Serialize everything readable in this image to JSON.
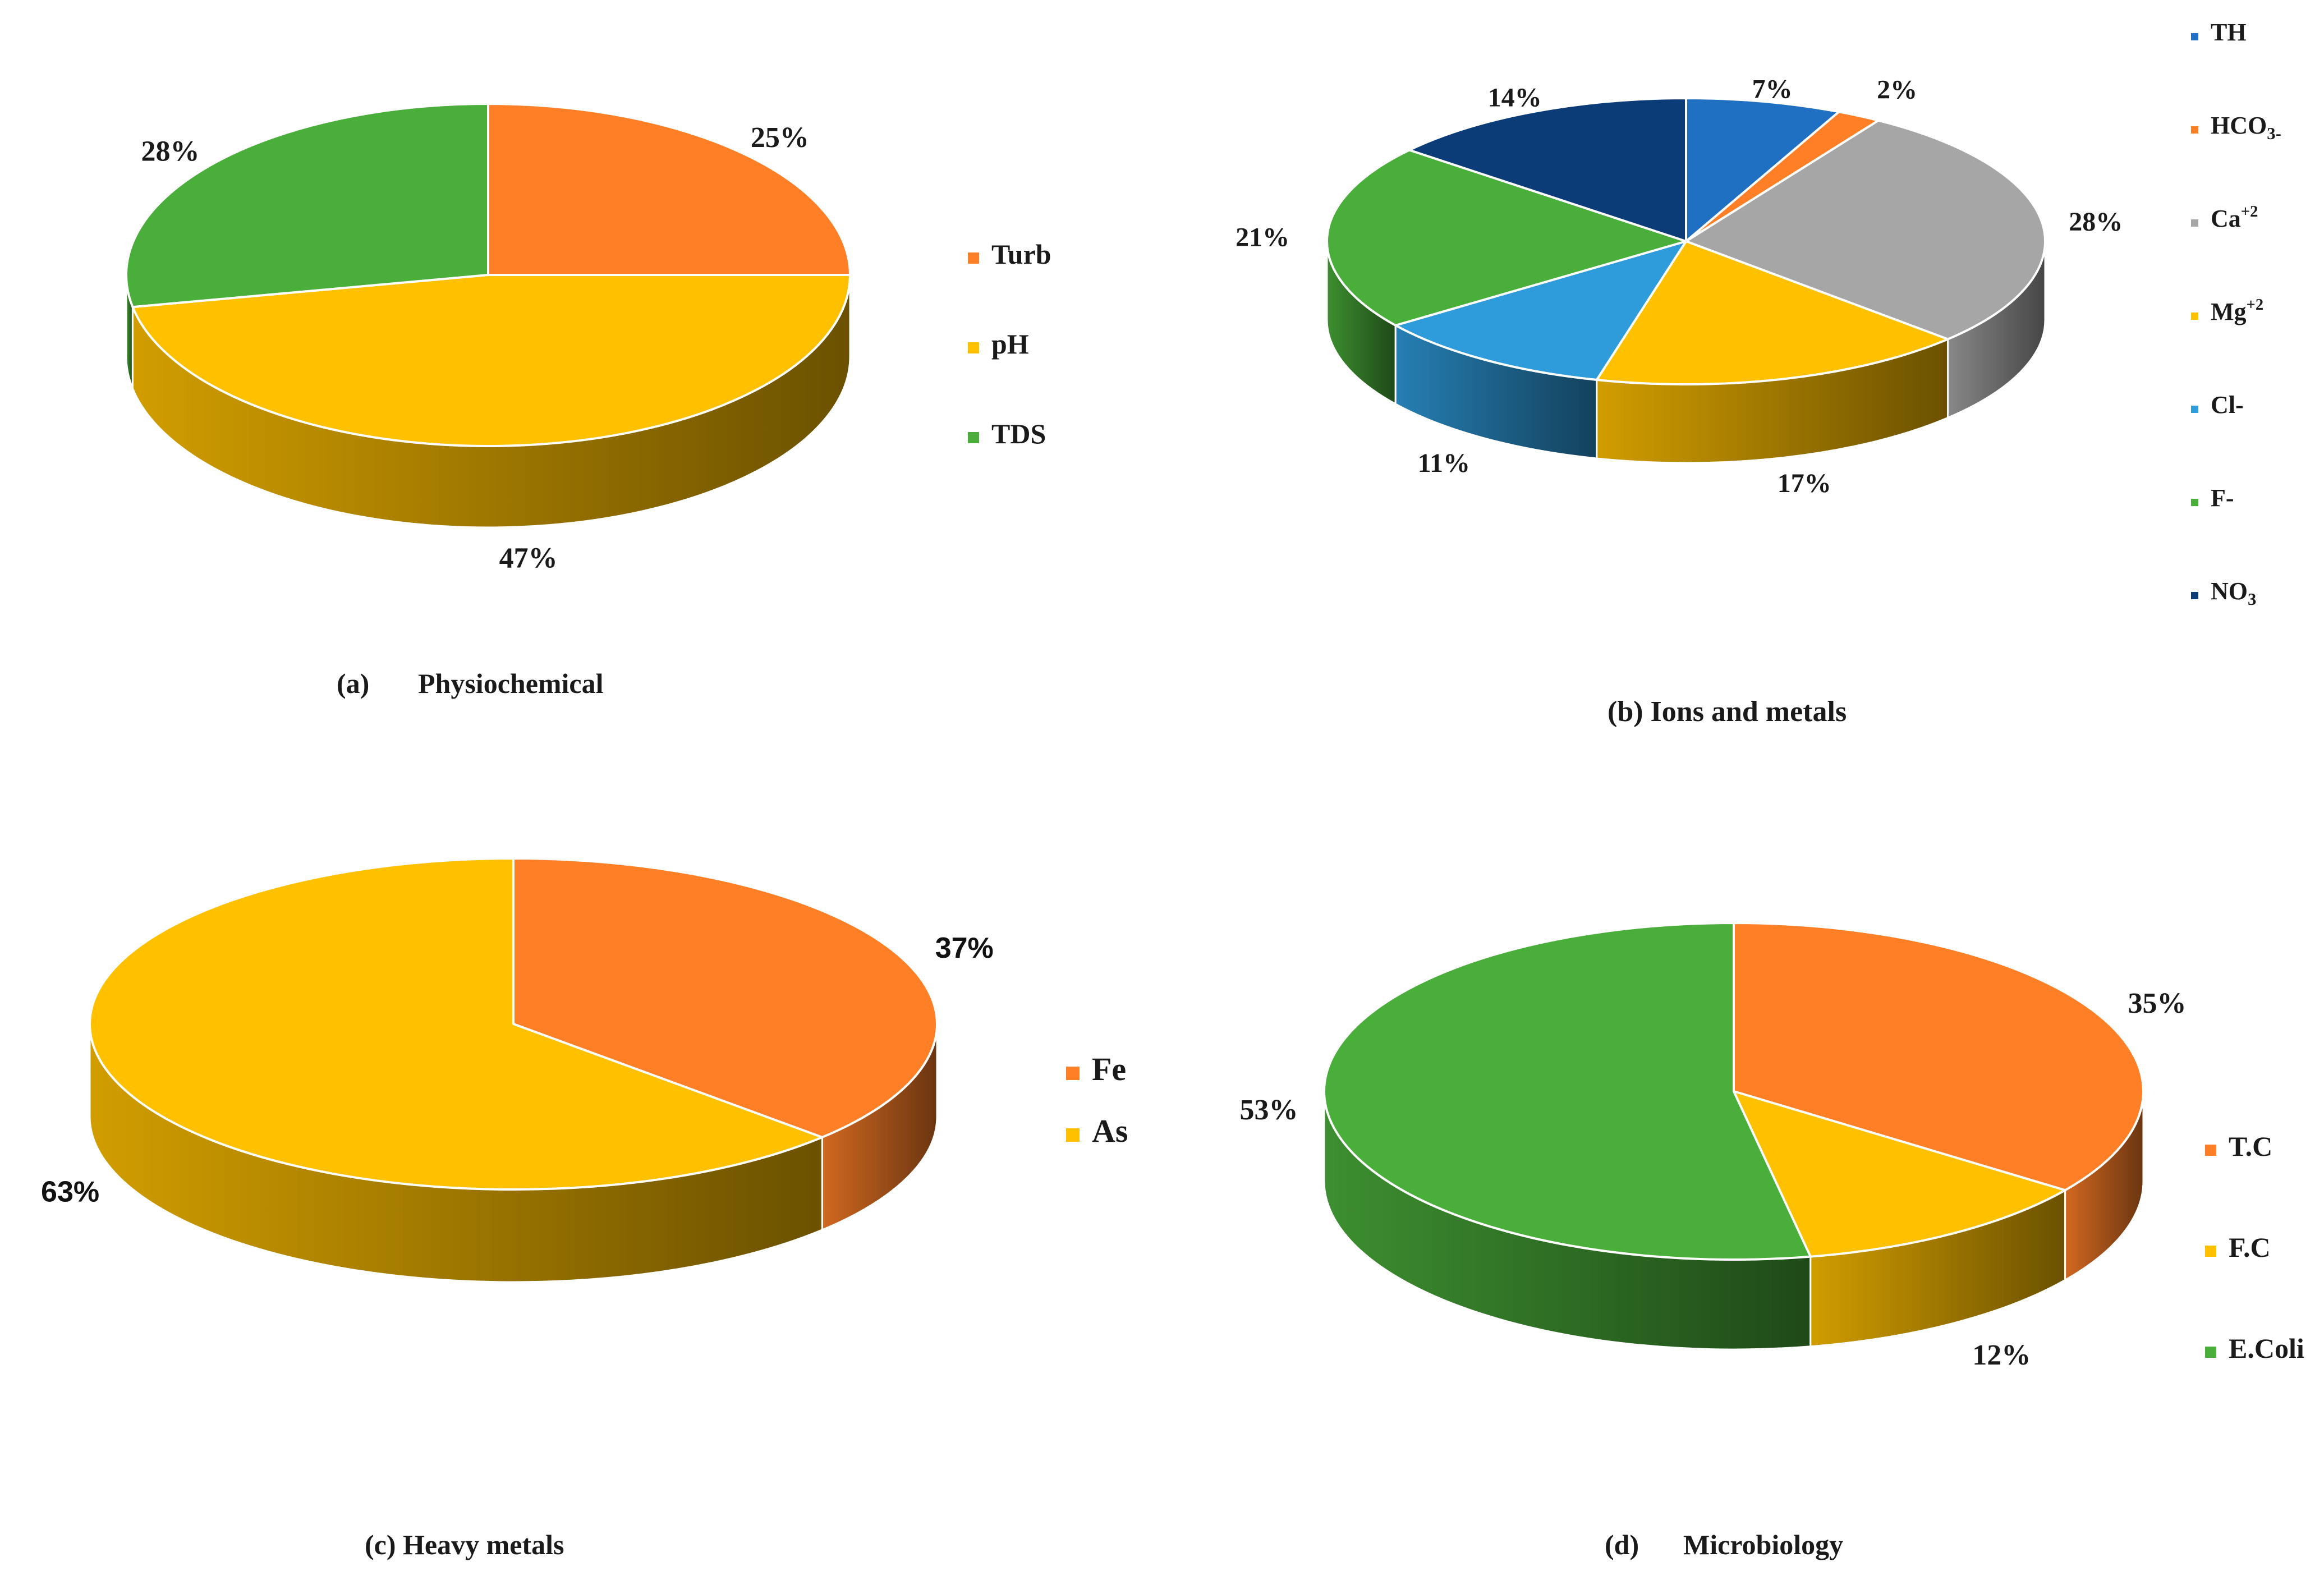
{
  "colors": {
    "orange": "#FF7F27",
    "yellow": "#FFC000",
    "green": "#4AAE3A",
    "gray": "#A6A6A6",
    "lightblue": "#2E9BDB",
    "blue": "#1F6FC2",
    "navy": "#0C3C78"
  },
  "chart_data": [
    {
      "id": "a",
      "type": "pie",
      "style": "3d",
      "title_letter": "(a)",
      "title_text": "Physiochemical",
      "label_font": "serif",
      "legend_position": "right",
      "slices": [
        {
          "label": "Turb",
          "value": 25,
          "text": "25%",
          "color": "#FF7F27"
        },
        {
          "label": "pH",
          "value": 47,
          "text": "47%",
          "color": "#FFC000"
        },
        {
          "label": "TDS",
          "value": 28,
          "text": "28%",
          "color": "#4AAE3A"
        }
      ]
    },
    {
      "id": "b",
      "type": "pie",
      "style": "3d",
      "title_letter": "(b)",
      "title_text": "Ions and metals",
      "label_font": "serif",
      "legend_position": "right",
      "slices": [
        {
          "label": "TH",
          "value": 7,
          "text": "7%",
          "color": "#1F6FC2"
        },
        {
          "label": "HCO3-",
          "value": 2,
          "text": "2%",
          "color": "#FF7F27"
        },
        {
          "label": "Ca+2",
          "value": 28,
          "text": "28%",
          "color": "#A6A6A6"
        },
        {
          "label": "Mg+2",
          "value": 17,
          "text": "17%",
          "color": "#FFC000"
        },
        {
          "label": "Cl-",
          "value": 11,
          "text": "11%",
          "color": "#2E9BDB"
        },
        {
          "label": "F-",
          "value": 21,
          "text": "21%",
          "color": "#4AAE3A"
        },
        {
          "label": "NO3",
          "value": 14,
          "text": "14%",
          "color": "#0C3C78"
        }
      ]
    },
    {
      "id": "c",
      "type": "pie",
      "style": "3d",
      "title_letter": "(c)",
      "title_text": "Heavy metals",
      "label_font": "sans",
      "legend_position": "right",
      "slices": [
        {
          "label": "Fe",
          "value": 37,
          "text": "37%",
          "color": "#FF7F27"
        },
        {
          "label": "As",
          "value": 63,
          "text": "63%",
          "color": "#FFC000"
        }
      ]
    },
    {
      "id": "d",
      "type": "pie",
      "style": "3d",
      "title_letter": "(d)",
      "title_text": "Microbiology",
      "label_font": "serif",
      "legend_position": "right",
      "slices": [
        {
          "label": "T.C",
          "value": 35,
          "text": "35%",
          "color": "#FF7F27"
        },
        {
          "label": "F.C",
          "value": 12,
          "text": "12%",
          "color": "#FFC000"
        },
        {
          "label": "E.Coli",
          "value": 53,
          "text": "53%",
          "color": "#4AAE3A"
        }
      ]
    }
  ]
}
